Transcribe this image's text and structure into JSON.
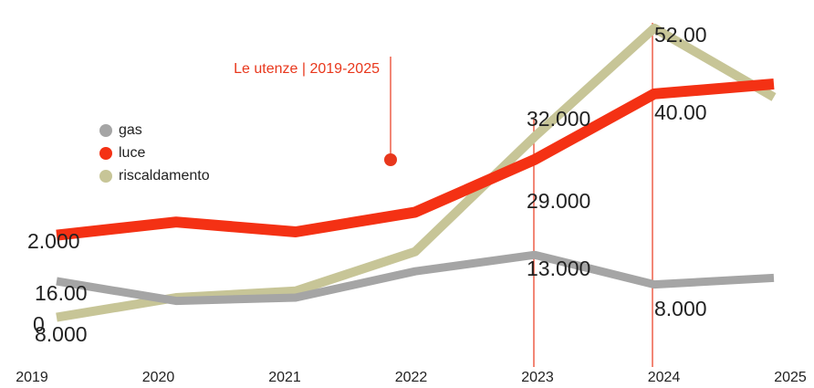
{
  "chart_data": {
    "type": "line",
    "title": "Le utenze | 2019-2025",
    "categories": [
      "2019",
      "2020",
      "2021",
      "2022",
      "2023",
      "2024",
      "2025"
    ],
    "series": [
      {
        "name": "gas",
        "color": "#a5a5a5",
        "values": [
          20,
          14,
          15,
          23,
          28,
          19,
          21
        ]
      },
      {
        "name": "luce",
        "color": "#f43114",
        "values": [
          34,
          38,
          35,
          41,
          57,
          77,
          80
        ]
      },
      {
        "name": "riscaldamento",
        "color": "#c7c597",
        "values": [
          9,
          15,
          17,
          29,
          64,
          97,
          76
        ]
      }
    ],
    "ylim": [
      0,
      100
    ],
    "annotations": [
      "2.000",
      "16.00",
      "0",
      "8.000",
      "32.000",
      "29.000",
      "13.000",
      "52.00",
      "40.00",
      "8.000"
    ]
  }
}
